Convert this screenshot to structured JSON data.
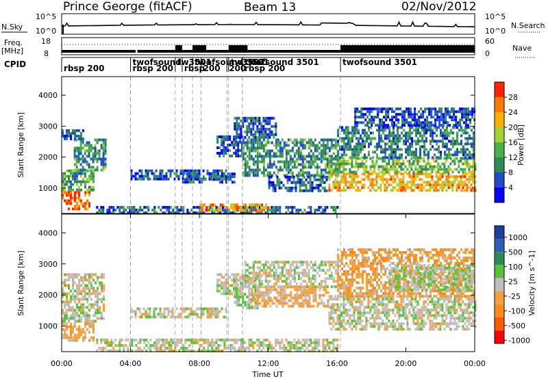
{
  "header": {
    "station": "Prince George (fitACF)",
    "beam": "Beam 13",
    "date": "02/Nov/2012"
  },
  "strip_labels": {
    "nsky": "N.Sky",
    "nsearch": "N.Search",
    "freq_line1": "Freq.",
    "freq_line2": "[MHz]",
    "nave": "Nave",
    "cpid": "CPID",
    "nsky_ticks": [
      "10^5",
      "10^0"
    ],
    "nsearch_ticks": [
      "10^5",
      "10^0"
    ],
    "freq_ticks": [
      "18",
      "8"
    ],
    "nave_ticks": [
      "60",
      "0"
    ]
  },
  "time_axis": {
    "label": "Time UT",
    "ticks": [
      "00:00",
      "04:00",
      "08:00",
      "12:00",
      "16:00",
      "20:00",
      "00:00"
    ]
  },
  "cpid_segments": [
    {
      "label": "rbsp 200",
      "start_h": 0.0,
      "row": 1
    },
    {
      "label": "twofsound",
      "start_h": 4.0,
      "row": 0
    },
    {
      "label": "rbsp 200",
      "start_h": 4.0,
      "row": 1
    },
    {
      "label": "tw3501",
      "start_h": 6.6,
      "row": 0
    },
    {
      "label": "rbsp",
      "start_h": 7.0,
      "row": 1
    },
    {
      "label": "twofsound 3501",
      "start_h": 7.6,
      "row": 0
    },
    {
      "label": "200",
      "start_h": 8.1,
      "row": 1
    },
    {
      "label": "tw3501",
      "start_h": 9.7,
      "row": 0
    },
    {
      "label": "200",
      "start_h": 9.6,
      "row": 1
    },
    {
      "label": "twofsound 3501",
      "start_h": 10.5,
      "row": 0
    },
    {
      "label": "rbsp 200",
      "start_h": 10.5,
      "row": 1
    },
    {
      "label": "twofsound 3501",
      "start_h": 16.2,
      "row": 0
    }
  ],
  "chart_data": [
    {
      "type": "heatmap",
      "title": "",
      "xlabel": "Time UT",
      "ylabel": "Slant Range [km]",
      "xlim": [
        0,
        24
      ],
      "ylim": [
        180,
        4600
      ],
      "yticks": [
        1000,
        2000,
        3000,
        4000
      ],
      "colorbar": {
        "label": "Power [dB]",
        "ticks": [
          "4",
          "8",
          "12",
          "16",
          "20",
          "24",
          "28"
        ],
        "range": [
          0,
          30
        ],
        "colors": [
          "#0000ff",
          "#1f4fc8",
          "#2e8b57",
          "#49b04a",
          "#a8d233",
          "#ffb000",
          "#ff7a00",
          "#ff2400"
        ]
      },
      "echo_regions": [
        {
          "t": [
            0.0,
            1.6
          ],
          "r": [
            300,
            900
          ],
          "v": 26
        },
        {
          "t": [
            0.0,
            1.8
          ],
          "r": [
            900,
            1600
          ],
          "v": 12
        },
        {
          "t": [
            0.7,
            2.6
          ],
          "r": [
            1600,
            2600
          ],
          "v": 10
        },
        {
          "t": [
            0.0,
            1.2
          ],
          "r": [
            2600,
            2900
          ],
          "v": 6
        },
        {
          "t": [
            2.0,
            16.0
          ],
          "r": [
            220,
            420
          ],
          "v": 7
        },
        {
          "t": [
            8.0,
            12.0
          ],
          "r": [
            250,
            500
          ],
          "v": 22
        },
        {
          "t": [
            4.0,
            9.5
          ],
          "r": [
            1300,
            1600
          ],
          "v": 6
        },
        {
          "t": [
            7.0,
            10.0
          ],
          "r": [
            1150,
            1500
          ],
          "v": 6
        },
        {
          "t": [
            9.0,
            10.5
          ],
          "r": [
            2000,
            2700
          ],
          "v": 6
        },
        {
          "t": [
            10.0,
            12.5
          ],
          "r": [
            2600,
            3300
          ],
          "v": 6
        },
        {
          "t": [
            10.5,
            16.0
          ],
          "r": [
            1400,
            2600
          ],
          "v": 10
        },
        {
          "t": [
            12.0,
            15.5
          ],
          "r": [
            900,
            1400
          ],
          "v": 7
        },
        {
          "t": [
            15.5,
            24.0
          ],
          "r": [
            900,
            1500
          ],
          "v": 21
        },
        {
          "t": [
            15.5,
            24.0
          ],
          "r": [
            1500,
            2000
          ],
          "v": 14
        },
        {
          "t": [
            16.0,
            24.0
          ],
          "r": [
            2000,
            3000
          ],
          "v": 9
        },
        {
          "t": [
            17.0,
            24.0
          ],
          "r": [
            3000,
            3600
          ],
          "v": 5
        }
      ]
    },
    {
      "type": "heatmap",
      "title": "",
      "xlabel": "Time UT",
      "ylabel": "Slant Range [km]",
      "xlim": [
        0,
        24
      ],
      "ylim": [
        180,
        4600
      ],
      "yticks": [
        1000,
        2000,
        3000,
        4000
      ],
      "colorbar": {
        "label": "Velocity [m s^-1]",
        "ticks": [
          "1000",
          "500",
          "100",
          "25",
          "-25",
          "-100",
          "-500",
          "-1000"
        ],
        "range": [
          -1200,
          1200
        ],
        "colors": [
          "#ff0000",
          "#ff5a00",
          "#ff8c1a",
          "#f2a040",
          "#bebebe",
          "#59c23a",
          "#2e8b57",
          "#2f5fb0",
          "#1f3fa0"
        ]
      },
      "echo_regions": [
        {
          "t": [
            0.0,
            1.8
          ],
          "r": [
            500,
            1200
          ],
          "v": -300
        },
        {
          "t": [
            0.0,
            2.5
          ],
          "r": [
            1200,
            2700
          ],
          "v": 0
        },
        {
          "t": [
            2.0,
            16.0
          ],
          "r": [
            220,
            600
          ],
          "v": 0
        },
        {
          "t": [
            4.0,
            9.5
          ],
          "r": [
            1300,
            1600
          ],
          "v": 0
        },
        {
          "t": [
            9.0,
            10.5
          ],
          "r": [
            2000,
            2700
          ],
          "v": 0
        },
        {
          "t": [
            10.0,
            11.5
          ],
          "r": [
            1600,
            2600
          ],
          "v": 150
        },
        {
          "t": [
            11.0,
            15.5
          ],
          "r": [
            1600,
            2300
          ],
          "v": -200
        },
        {
          "t": [
            10.5,
            16.0
          ],
          "r": [
            2300,
            3100
          ],
          "v": 0
        },
        {
          "t": [
            15.5,
            24.0
          ],
          "r": [
            900,
            2000
          ],
          "v": 0
        },
        {
          "t": [
            16.0,
            24.0
          ],
          "r": [
            2000,
            3500
          ],
          "v": -300
        },
        {
          "t": [
            19.0,
            24.0
          ],
          "r": [
            2200,
            3000
          ],
          "v": 100
        }
      ]
    }
  ]
}
